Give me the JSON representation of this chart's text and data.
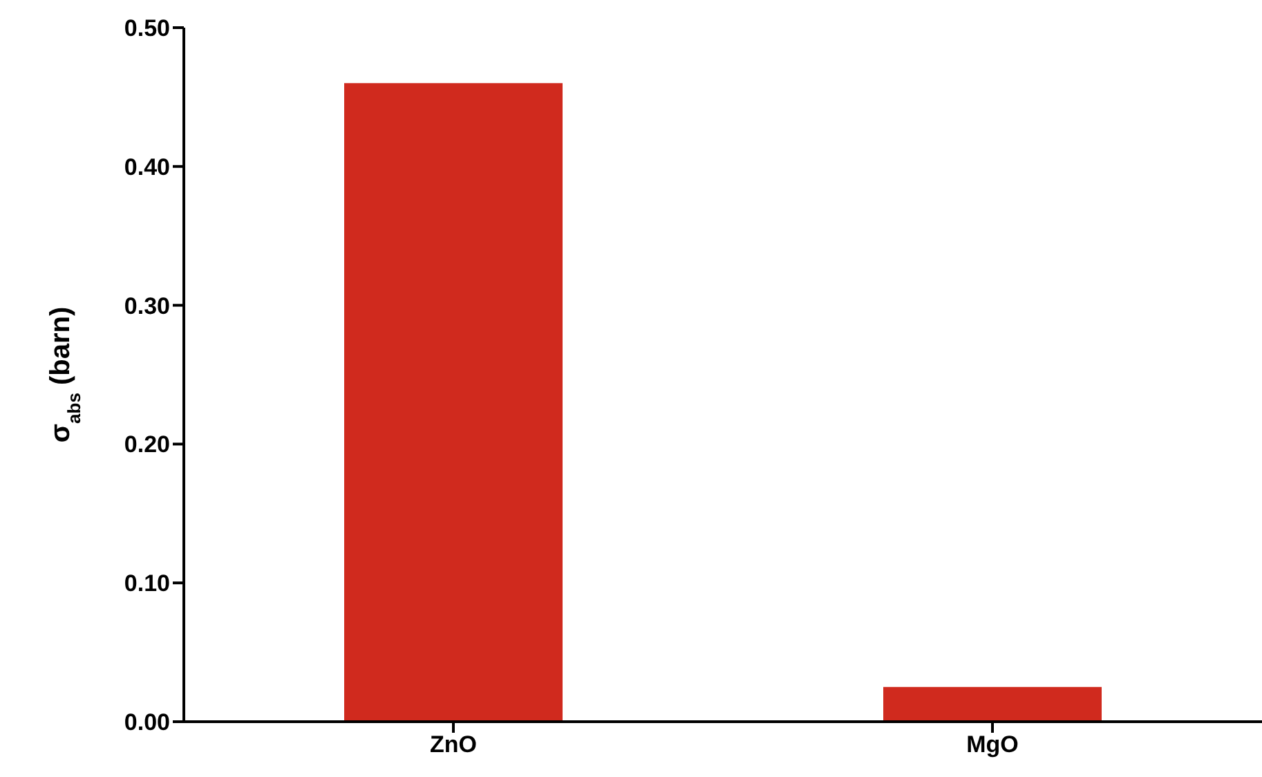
{
  "chart_data": {
    "type": "bar",
    "ylabel": "σ$_{abs}$ (barn)",
    "categories": [
      "ZnO",
      "MgO"
    ],
    "values": [
      0.46,
      0.025
    ],
    "color": "#d02a1e",
    "ylim": [
      0,
      0.5
    ],
    "yticks": [
      {
        "value": 0,
        "label": "0.00"
      },
      {
        "value": 0.1,
        "label": "0.10"
      },
      {
        "value": 0.2,
        "label": "0.20"
      },
      {
        "value": 0.3,
        "label": "0.30"
      },
      {
        "value": 0.4,
        "label": "0.40"
      },
      {
        "value": 0.5,
        "label": "0.50"
      }
    ],
    "grid": false
  }
}
